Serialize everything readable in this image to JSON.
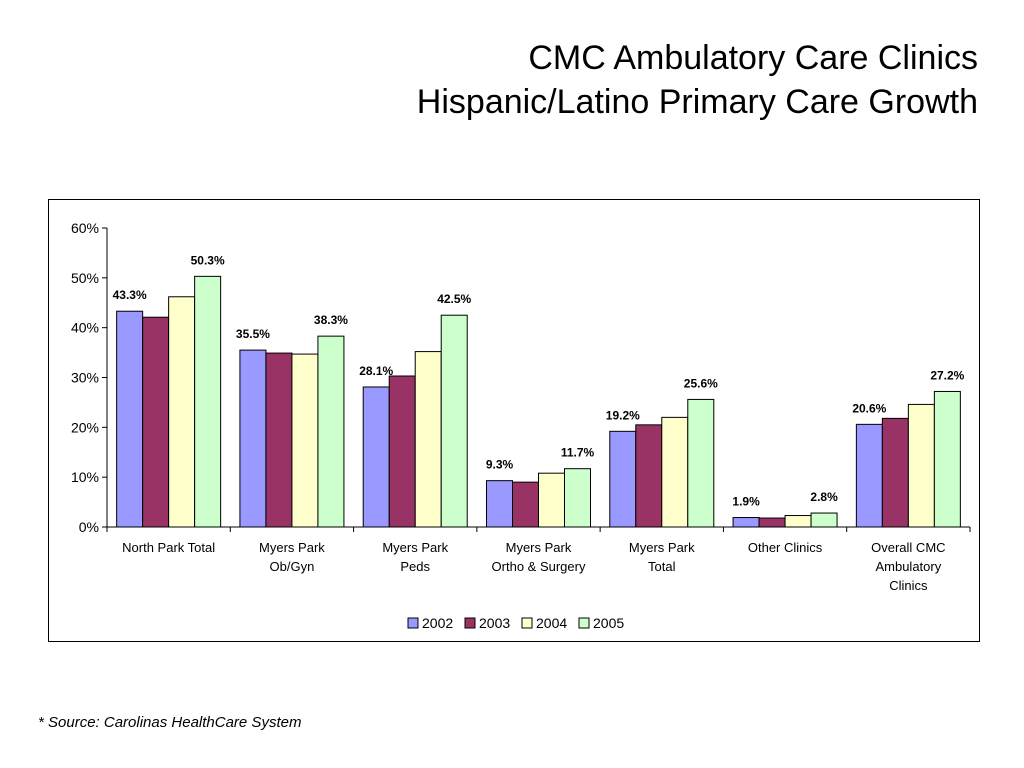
{
  "title": {
    "line1": "CMC Ambulatory Care Clinics",
    "line2": "Hispanic/Latino Primary Care Growth"
  },
  "source_note": "* Source: Carolinas HealthCare System",
  "chart_data": {
    "type": "bar",
    "categories": [
      [
        "North Park Total"
      ],
      [
        "Myers Park",
        "Ob/Gyn"
      ],
      [
        "Myers Park",
        "Peds"
      ],
      [
        "Myers Park",
        "Ortho & Surgery"
      ],
      [
        "Myers Park",
        "Total"
      ],
      [
        "Other Clinics"
      ],
      [
        "Overall CMC",
        "Ambulatory",
        "Clinics"
      ]
    ],
    "series": [
      {
        "name": "2002",
        "color": "#9999ff",
        "values": [
          43.3,
          35.5,
          28.1,
          9.3,
          19.2,
          1.9,
          20.6
        ]
      },
      {
        "name": "2003",
        "color": "#993366",
        "values": [
          42.1,
          34.9,
          30.3,
          9.0,
          20.5,
          1.8,
          21.8
        ]
      },
      {
        "name": "2004",
        "color": "#ffffcc",
        "values": [
          46.2,
          34.7,
          35.2,
          10.8,
          22.0,
          2.3,
          24.6
        ]
      },
      {
        "name": "2005",
        "color": "#ccffcc",
        "values": [
          50.3,
          38.3,
          42.5,
          11.7,
          25.6,
          2.8,
          27.2
        ]
      }
    ],
    "data_labels": [
      {
        "category": 0,
        "series": 0,
        "text": "43.3%"
      },
      {
        "category": 0,
        "series": 3,
        "text": "50.3%"
      },
      {
        "category": 1,
        "series": 0,
        "text": "35.5%"
      },
      {
        "category": 1,
        "series": 3,
        "text": "38.3%"
      },
      {
        "category": 2,
        "series": 0,
        "text": "28.1%"
      },
      {
        "category": 2,
        "series": 3,
        "text": "42.5%"
      },
      {
        "category": 3,
        "series": 0,
        "text": "9.3%"
      },
      {
        "category": 3,
        "series": 3,
        "text": "11.7%"
      },
      {
        "category": 4,
        "series": 0,
        "text": "19.2%"
      },
      {
        "category": 4,
        "series": 3,
        "text": "25.6%"
      },
      {
        "category": 5,
        "series": 0,
        "text": "1.9%"
      },
      {
        "category": 5,
        "series": 3,
        "text": "2.8%"
      },
      {
        "category": 6,
        "series": 0,
        "text": "20.6%"
      },
      {
        "category": 6,
        "series": 3,
        "text": "27.2%"
      }
    ],
    "yticks": [
      "0%",
      "10%",
      "20%",
      "30%",
      "40%",
      "50%",
      "60%"
    ],
    "ylim": [
      0,
      60
    ],
    "xlabel": "",
    "ylabel": "",
    "grid": false,
    "legend_position": "bottom"
  }
}
